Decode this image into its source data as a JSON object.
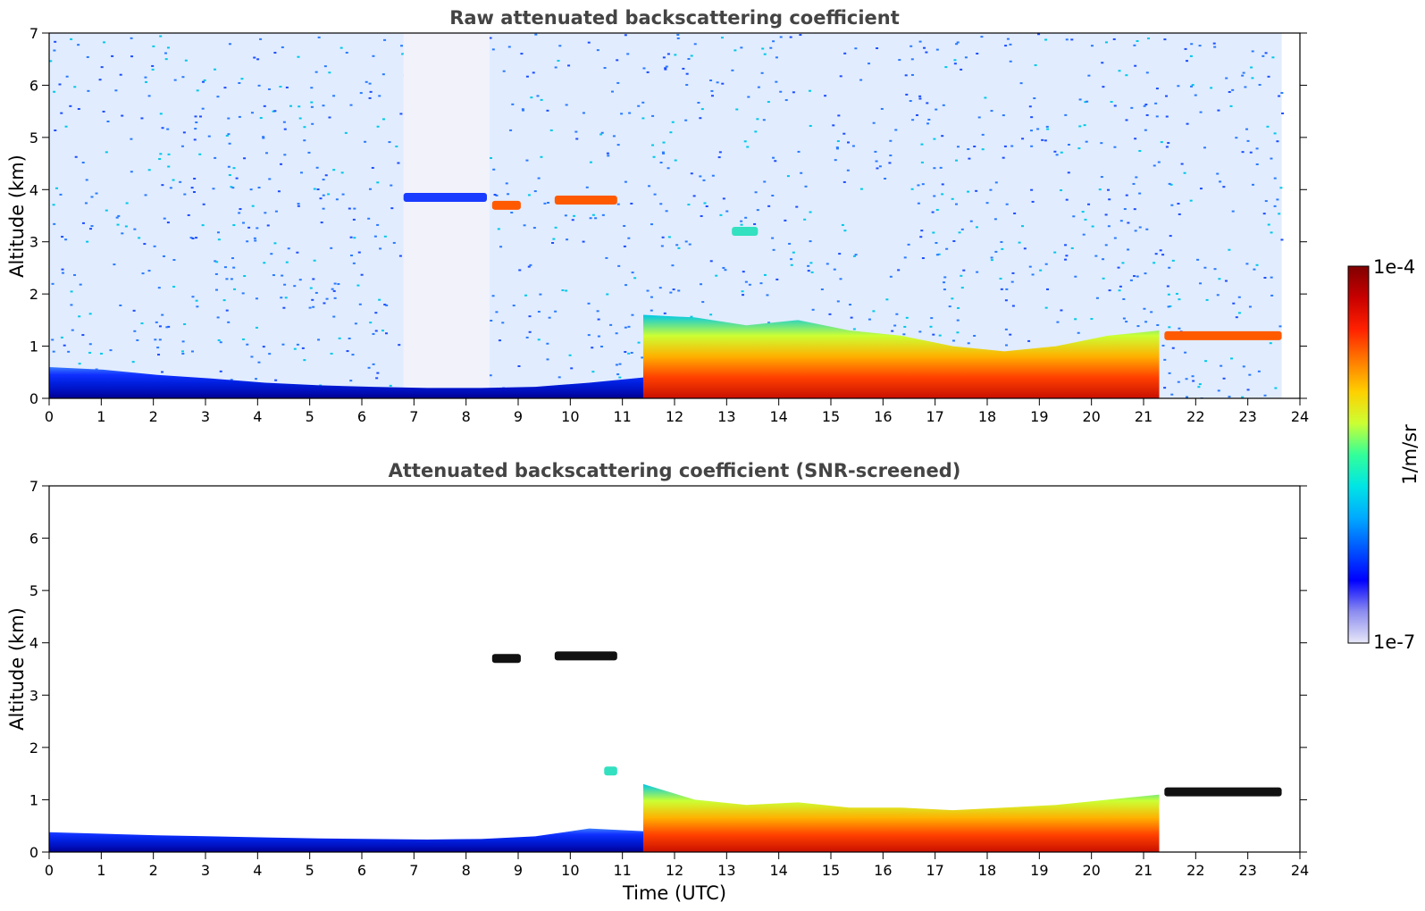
{
  "chart_data": [
    {
      "type": "heatmap",
      "title": "Raw attenuated backscattering coefficient",
      "xlabel": "",
      "ylabel": "Altitude (km)",
      "xlim": [
        0,
        24
      ],
      "ylim": [
        0,
        7
      ],
      "xticks": [
        0,
        1,
        2,
        3,
        4,
        5,
        6,
        7,
        8,
        9,
        10,
        11,
        12,
        13,
        14,
        15,
        16,
        17,
        18,
        19,
        20,
        21,
        22,
        23,
        24
      ],
      "yticks": [
        0,
        1,
        2,
        3,
        4,
        5,
        6,
        7
      ],
      "data_end_hour": 23.65,
      "features": [
        {
          "kind": "noise_background",
          "from_hour": 0,
          "to_hour": 23.65,
          "from_alt": 0,
          "to_alt": 7,
          "level": "low"
        },
        {
          "kind": "data_gap_low_noise",
          "from_hour": 6.8,
          "to_hour": 8.45,
          "from_alt": 0,
          "to_alt": 7
        },
        {
          "kind": "boundary_layer",
          "from_hour": 0,
          "to_hour": 11.4,
          "top_alt": [
            0.6,
            0.55,
            0.45,
            0.38,
            0.3,
            0.25,
            0.22,
            0.2,
            0.2,
            0.22,
            0.3,
            0.4
          ],
          "level": "low"
        },
        {
          "kind": "cloud_layer",
          "from_hour": 6.8,
          "to_hour": 8.4,
          "alt": 3.85,
          "level": "low"
        },
        {
          "kind": "cloud_layer",
          "from_hour": 8.5,
          "to_hour": 9.05,
          "alt": 3.7,
          "level": "high"
        },
        {
          "kind": "cloud_layer",
          "from_hour": 9.7,
          "to_hour": 10.9,
          "alt": 3.8,
          "level": "high"
        },
        {
          "kind": "cloud_layer",
          "from_hour": 13.1,
          "to_hour": 13.6,
          "alt": 3.2,
          "level": "mid"
        },
        {
          "kind": "boundary_layer",
          "from_hour": 11.4,
          "to_hour": 21.3,
          "top_alt": [
            1.6,
            1.55,
            1.4,
            1.5,
            1.3,
            1.2,
            1.0,
            0.9,
            1.0,
            1.2,
            1.3
          ],
          "level": "high"
        },
        {
          "kind": "cloud_layer",
          "from_hour": 21.4,
          "to_hour": 23.65,
          "alt": 1.2,
          "level": "high"
        }
      ]
    },
    {
      "type": "heatmap",
      "title": "Attenuated backscattering coefficient (SNR-screened)",
      "xlabel": "Time (UTC)",
      "ylabel": "Altitude (km)",
      "xlim": [
        0,
        24
      ],
      "ylim": [
        0,
        7
      ],
      "xticks": [
        0,
        1,
        2,
        3,
        4,
        5,
        6,
        7,
        8,
        9,
        10,
        11,
        12,
        13,
        14,
        15,
        16,
        17,
        18,
        19,
        20,
        21,
        22,
        23,
        24
      ],
      "yticks": [
        0,
        1,
        2,
        3,
        4,
        5,
        6,
        7
      ],
      "data_end_hour": 23.65,
      "features": [
        {
          "kind": "boundary_layer",
          "from_hour": 0,
          "to_hour": 11.4,
          "top_alt": [
            0.38,
            0.35,
            0.32,
            0.3,
            0.28,
            0.26,
            0.25,
            0.24,
            0.25,
            0.3,
            0.45,
            0.4
          ],
          "level": "low"
        },
        {
          "kind": "cloud_layer",
          "from_hour": 8.5,
          "to_hour": 9.05,
          "alt": 3.7,
          "level": "saturated"
        },
        {
          "kind": "cloud_layer",
          "from_hour": 9.7,
          "to_hour": 10.9,
          "alt": 3.75,
          "level": "saturated"
        },
        {
          "kind": "cloud_layer",
          "from_hour": 10.65,
          "to_hour": 10.9,
          "alt": 1.55,
          "level": "mid"
        },
        {
          "kind": "boundary_layer",
          "from_hour": 11.4,
          "to_hour": 21.3,
          "top_alt": [
            1.3,
            1.0,
            0.9,
            0.95,
            0.85,
            0.85,
            0.8,
            0.85,
            0.9,
            1.0,
            1.1
          ],
          "level": "high"
        },
        {
          "kind": "cloud_layer",
          "from_hour": 21.4,
          "to_hour": 23.65,
          "alt": 1.15,
          "level": "saturated"
        }
      ]
    }
  ],
  "colorbar": {
    "label": "1/m/sr",
    "max_label": "1e-4",
    "min_label": "1e-7",
    "colors": [
      "#e8e8f8",
      "#8c8cf0",
      "#0000ff",
      "#0055ff",
      "#00aaff",
      "#00e5e5",
      "#33ff99",
      "#ccff33",
      "#ffd000",
      "#ff7a00",
      "#ff2000",
      "#c80000",
      "#800000"
    ]
  }
}
